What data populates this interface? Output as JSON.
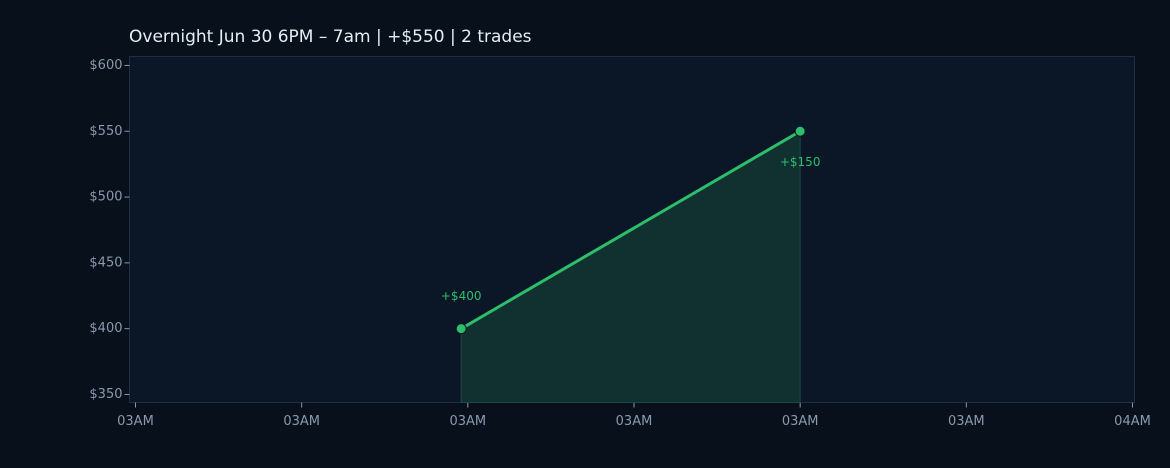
{
  "chart_data": {
    "type": "line",
    "title": "Overnight  Jun 30 6PM – 7am  |  +$550  |  2 trades",
    "x": [
      19.6,
      40
    ],
    "values": [
      400,
      550
    ],
    "annotations": [
      "+$400",
      "+$150"
    ],
    "color": "#2ebd6b",
    "fill_color": "#10312f",
    "xlim": [
      -0.36,
      60.12
    ],
    "xticks": [
      {
        "value": 0,
        "label": "03AM"
      },
      {
        "value": 10,
        "label": "03AM"
      },
      {
        "value": 20,
        "label": "03AM"
      },
      {
        "value": 30,
        "label": "03AM"
      },
      {
        "value": 40,
        "label": "03AM"
      },
      {
        "value": 50,
        "label": "03AM"
      },
      {
        "value": 60,
        "label": "04AM"
      }
    ],
    "ylim": [
      343.9,
      606.8
    ],
    "yticks": [
      {
        "value": 350,
        "label": "$350"
      },
      {
        "value": 400,
        "label": "$400"
      },
      {
        "value": 450,
        "label": "$450"
      },
      {
        "value": 500,
        "label": "$500"
      },
      {
        "value": 550,
        "label": "$550"
      },
      {
        "value": 600,
        "label": "$600"
      }
    ],
    "grid": false
  }
}
